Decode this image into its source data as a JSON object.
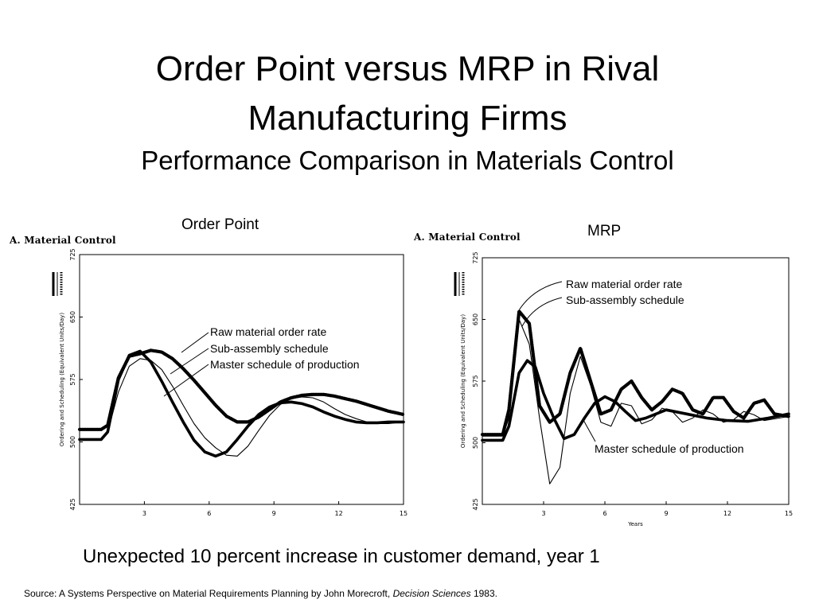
{
  "slide": {
    "title_line1": "Order Point versus MRP in Rival",
    "title_line2": "Manufacturing Firms",
    "subtitle": "Performance Comparison in Materials Control",
    "caption": "Unexpected 10 percent increase in customer demand, year 1",
    "source_prefix": "Source:  A Systems Perspective on Material Requirements Planning by John Morecroft,  ",
    "source_journal": "Decision Sciences",
    "source_suffix": " 1983."
  },
  "chart_data": [
    {
      "type": "line",
      "panel_label": "Order Point",
      "title": "A. Material Control",
      "ylabel": "Ordering and Scheduling (Equivalent Units/Day)",
      "xlabel": "",
      "ylim": [
        425,
        725
      ],
      "xlim": [
        0,
        15
      ],
      "yticks": [
        "725",
        "650",
        "575",
        "500",
        "425"
      ],
      "xticks": [
        "3",
        "6",
        "9",
        "12",
        "15"
      ],
      "annotations": [
        "Raw material order rate",
        "Sub-assembly schedule",
        "Master schedule of production"
      ],
      "series": [
        {
          "style": "bold",
          "x": [
            0,
            1,
            1.3,
            1.8,
            2.3,
            2.8,
            3.3,
            3.8,
            4.3,
            4.8,
            5.3,
            5.8,
            6.3,
            6.8,
            7.3,
            7.8,
            8.3,
            8.8,
            9.3,
            9.8,
            10.3,
            10.8,
            11.3,
            11.8,
            12.3,
            12.8,
            13.3,
            13.8,
            14.3,
            15
          ],
          "y": [
            503,
            503,
            512,
            575,
            604,
            609,
            596,
            573,
            548,
            524,
            502,
            488,
            483,
            488,
            503,
            519,
            533,
            542,
            547,
            548,
            546,
            542,
            536,
            531,
            527,
            524,
            523,
            523,
            524,
            524
          ]
        },
        {
          "style": "thin",
          "x": [
            0,
            1,
            1.3,
            1.8,
            2.3,
            2.8,
            3.3,
            3.8,
            4.3,
            4.8,
            5.3,
            5.8,
            6.3,
            6.8,
            7.3,
            7.8,
            8.3,
            8.8,
            9.3,
            9.8,
            10.3,
            10.8,
            11.3,
            11.8,
            12.3,
            12.8,
            13.3,
            13.8,
            14.3,
            15
          ],
          "y": [
            503,
            503,
            512,
            560,
            591,
            600,
            598,
            587,
            567,
            544,
            522,
            505,
            493,
            484,
            483,
            495,
            514,
            532,
            545,
            552,
            554,
            553,
            548,
            540,
            533,
            528,
            524,
            522,
            522,
            524
          ]
        },
        {
          "style": "dotted",
          "x": [
            0,
            1,
            1.3,
            1.8,
            2.3,
            2.8,
            3.3,
            3.8,
            4.3,
            4.8,
            5.3,
            5.8,
            6.3,
            6.8,
            7.3,
            7.8,
            8.3,
            8.8,
            9.3,
            9.8,
            10.3,
            10.8,
            11.3,
            11.8,
            12.3,
            12.8,
            13.3,
            13.8,
            14.3,
            15
          ],
          "y": [
            515,
            515,
            520,
            577,
            603,
            606,
            610,
            608,
            600,
            588,
            574,
            559,
            544,
            531,
            524,
            524,
            530,
            539,
            548,
            553,
            556,
            557,
            557,
            555,
            552,
            549,
            545,
            541,
            537,
            533
          ]
        }
      ]
    },
    {
      "type": "line",
      "panel_label": "MRP",
      "title": "A. Material Control",
      "ylabel": "Ordering and Scheduling (Equivalent Units/Day)",
      "xlabel": "Years",
      "ylim": [
        425,
        725
      ],
      "xlim": [
        0,
        15
      ],
      "yticks": [
        "725",
        "650",
        "575",
        "500",
        "425"
      ],
      "xticks": [
        "3",
        "6",
        "9",
        "12",
        "15"
      ],
      "annotations": [
        "Raw material order rate",
        "Sub-assembly schedule",
        "Master schedule of production"
      ],
      "series": [
        {
          "style": "bold",
          "x": [
            0,
            1,
            1.3,
            1.8,
            2.2,
            2.6,
            3,
            3.5,
            4,
            4.5,
            5,
            5.5,
            6,
            6.5,
            7,
            7.5,
            8,
            9,
            10,
            11,
            12,
            13,
            14,
            15
          ],
          "y": [
            503,
            503,
            520,
            585,
            600,
            592,
            560,
            530,
            505,
            510,
            530,
            548,
            556,
            550,
            538,
            527,
            530,
            540,
            535,
            530,
            527,
            526,
            530,
            535
          ]
        },
        {
          "style": "thin",
          "x": [
            0,
            1,
            1.3,
            1.8,
            2.3,
            2.8,
            3.3,
            3.8,
            4.3,
            4.8,
            5.3,
            5.8,
            6.3,
            6.8,
            7.3,
            7.8,
            8.3,
            8.8,
            9.3,
            9.8,
            10.3,
            10.8,
            11.3,
            11.8,
            12.3,
            12.8,
            13.3,
            13.8,
            14.3,
            15
          ],
          "y": [
            508,
            508,
            530,
            650,
            620,
            530,
            450,
            470,
            560,
            605,
            570,
            525,
            520,
            548,
            545,
            523,
            528,
            542,
            538,
            525,
            530,
            540,
            535,
            525,
            528,
            538,
            534,
            527,
            529,
            532
          ]
        },
        {
          "style": "dotted",
          "x": [
            0,
            1,
            1.3,
            1.8,
            2.3,
            2.8,
            3.3,
            3.8,
            4.3,
            4.8,
            5.3,
            5.8,
            6.3,
            6.8,
            7.3,
            7.8,
            8.3,
            8.8,
            9.3,
            9.8,
            10.3,
            10.8,
            11.3,
            11.8,
            12.3,
            12.8,
            13.3,
            13.8,
            14.3,
            15
          ],
          "y": [
            510,
            510,
            540,
            660,
            645,
            545,
            525,
            535,
            585,
            615,
            575,
            535,
            540,
            565,
            575,
            555,
            540,
            550,
            565,
            560,
            540,
            535,
            555,
            555,
            538,
            530,
            548,
            552,
            535,
            532
          ]
        }
      ]
    }
  ]
}
